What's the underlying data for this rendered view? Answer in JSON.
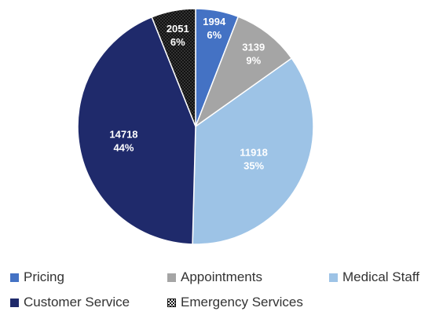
{
  "chart_data": {
    "type": "pie",
    "categories": [
      "Pricing",
      "Appointments",
      "Medical Staff",
      "Customer Service",
      "Emergency Services"
    ],
    "values": [
      1994,
      3139,
      11918,
      14718,
      2051
    ],
    "percent_labels": [
      "6%",
      "9%",
      "35%",
      "44%",
      "6%"
    ],
    "value_labels": [
      "1994",
      "3139",
      "11918",
      "14718",
      "2051"
    ],
    "colors": [
      "#4472c4",
      "#a5a5a5",
      "#9dc3e6",
      "#1f2a6b",
      "#1a1a1a"
    ],
    "patterns": [
      "solid",
      "solid",
      "solid",
      "solid",
      "checker"
    ],
    "legend_position": "bottom",
    "start_angle_deg": 0,
    "direction": "clockwise"
  },
  "legend": [
    {
      "label": "Pricing",
      "color": "#4472c4",
      "pattern": "solid"
    },
    {
      "label": "Appointments",
      "color": "#a5a5a5",
      "pattern": "solid"
    },
    {
      "label": "Medical Staff",
      "color": "#9dc3e6",
      "pattern": "solid"
    },
    {
      "label": "Customer Service",
      "color": "#1f2a6b",
      "pattern": "solid"
    },
    {
      "label": "Emergency Services",
      "color": "#1a1a1a",
      "pattern": "checker"
    }
  ]
}
